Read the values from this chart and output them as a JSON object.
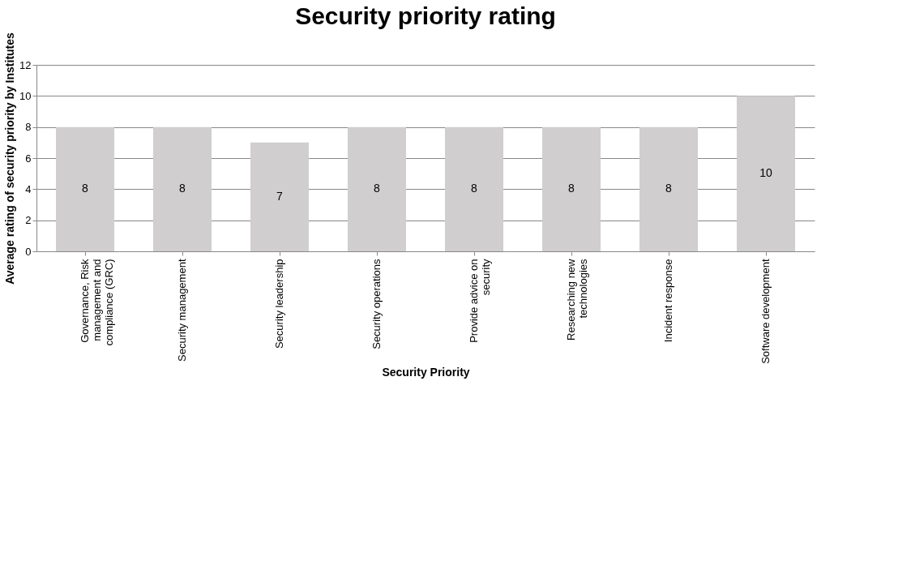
{
  "chart_data": {
    "type": "bar",
    "title": "Security priority rating",
    "xlabel": "Security Priority",
    "ylabel": "Average rating of security priority by Institutes",
    "categories": [
      "Governance, Risk management and compliance (GRC)",
      "Security management",
      "Security leadership",
      "Security operations",
      "Provide advice on security",
      "Researching new technologies",
      "Incident response",
      "Software development"
    ],
    "values": [
      8,
      8,
      7,
      8,
      8,
      8,
      8,
      10
    ],
    "color": "#d0cece",
    "ylim": [
      0,
      12
    ],
    "yticks": [
      0,
      2,
      4,
      6,
      8,
      10,
      12
    ],
    "grid": "y",
    "data_labels": true
  }
}
